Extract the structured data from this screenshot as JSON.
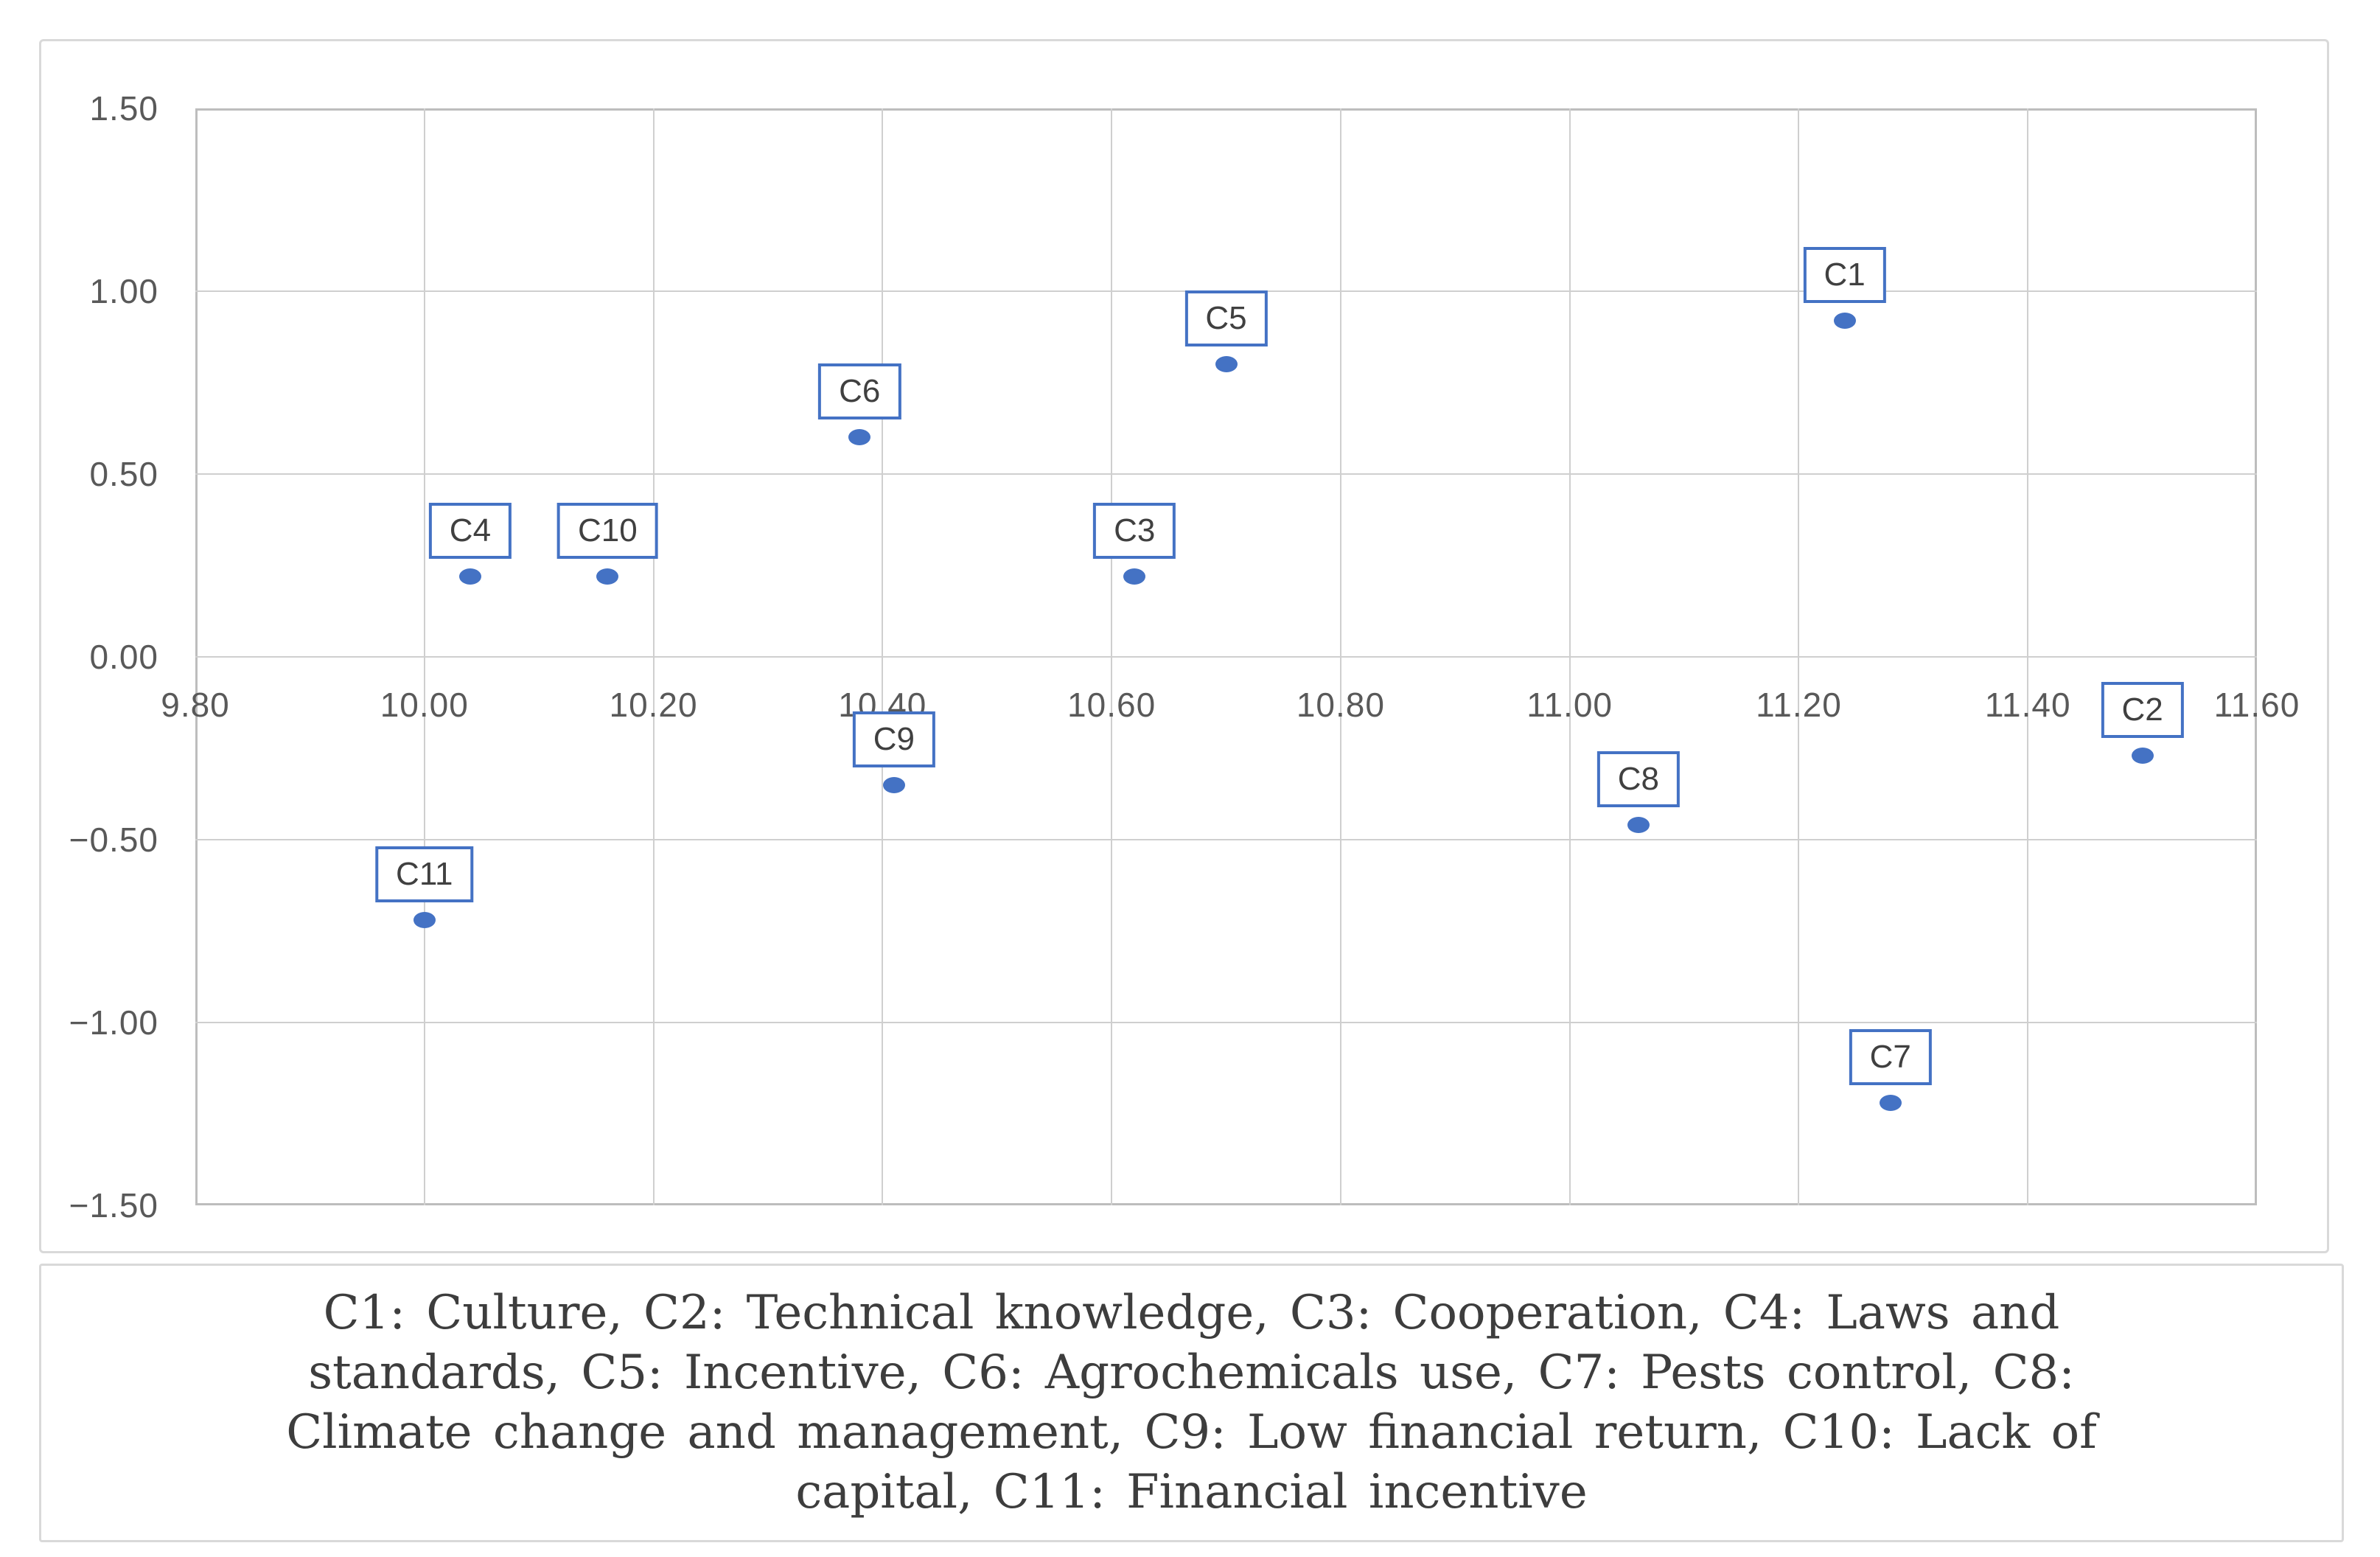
{
  "chart_data": {
    "type": "scatter",
    "title": "",
    "xlabel": "",
    "ylabel": "",
    "xlim": [
      9.8,
      11.6
    ],
    "ylim": [
      -1.5,
      1.5
    ],
    "grid": true,
    "legend": "none",
    "marker_color": "#4472C4",
    "label_box_border_color": "#4472C4",
    "label_text_color": "#404040",
    "axis_text_color": "#595959",
    "gridline_color": "#CFCFCF",
    "x_ticks": [
      {
        "v": 9.8,
        "label": "9.80"
      },
      {
        "v": 10.0,
        "label": "10.00"
      },
      {
        "v": 10.2,
        "label": "10.20"
      },
      {
        "v": 10.4,
        "label": "10.40"
      },
      {
        "v": 10.6,
        "label": "10.60"
      },
      {
        "v": 10.8,
        "label": "10.80"
      },
      {
        "v": 11.0,
        "label": "11.00"
      },
      {
        "v": 11.2,
        "label": "11.20"
      },
      {
        "v": 11.4,
        "label": "11.40"
      },
      {
        "v": 11.6,
        "label": "11.60"
      }
    ],
    "y_ticks": [
      {
        "v": 1.5,
        "label": "1.50"
      },
      {
        "v": 1.0,
        "label": "1.00"
      },
      {
        "v": 0.5,
        "label": "0.50"
      },
      {
        "v": 0.0,
        "label": "0.00"
      },
      {
        "v": -0.5,
        "label": "−0.50"
      },
      {
        "v": -1.0,
        "label": "−1.00"
      },
      {
        "v": -1.5,
        "label": "−1.50"
      }
    ],
    "points": [
      {
        "label": "C1",
        "x": 11.24,
        "y": 0.92
      },
      {
        "label": "C2",
        "x": 11.5,
        "y": -0.27
      },
      {
        "label": "C3",
        "x": 10.62,
        "y": 0.22
      },
      {
        "label": "C4",
        "x": 10.04,
        "y": 0.22
      },
      {
        "label": "C5",
        "x": 10.7,
        "y": 0.8
      },
      {
        "label": "C6",
        "x": 10.38,
        "y": 0.6
      },
      {
        "label": "C7",
        "x": 11.28,
        "y": -1.22
      },
      {
        "label": "C8",
        "x": 11.06,
        "y": -0.46
      },
      {
        "label": "C9",
        "x": 10.41,
        "y": -0.35
      },
      {
        "label": "C10",
        "x": 10.16,
        "y": 0.22
      },
      {
        "label": "C11",
        "x": 10.0,
        "y": -0.72
      }
    ]
  },
  "caption": {
    "lines": [
      "C1: Culture, C2: Technical knowledge, C3: Cooperation, C4: Laws and",
      "standards, C5: Incentive, C6: Agrochemicals use, C7: Pests control, C8:",
      "Climate change and management, C9: Low financial return, C10: Lack of",
      "capital, C11: Financial incentive"
    ]
  }
}
